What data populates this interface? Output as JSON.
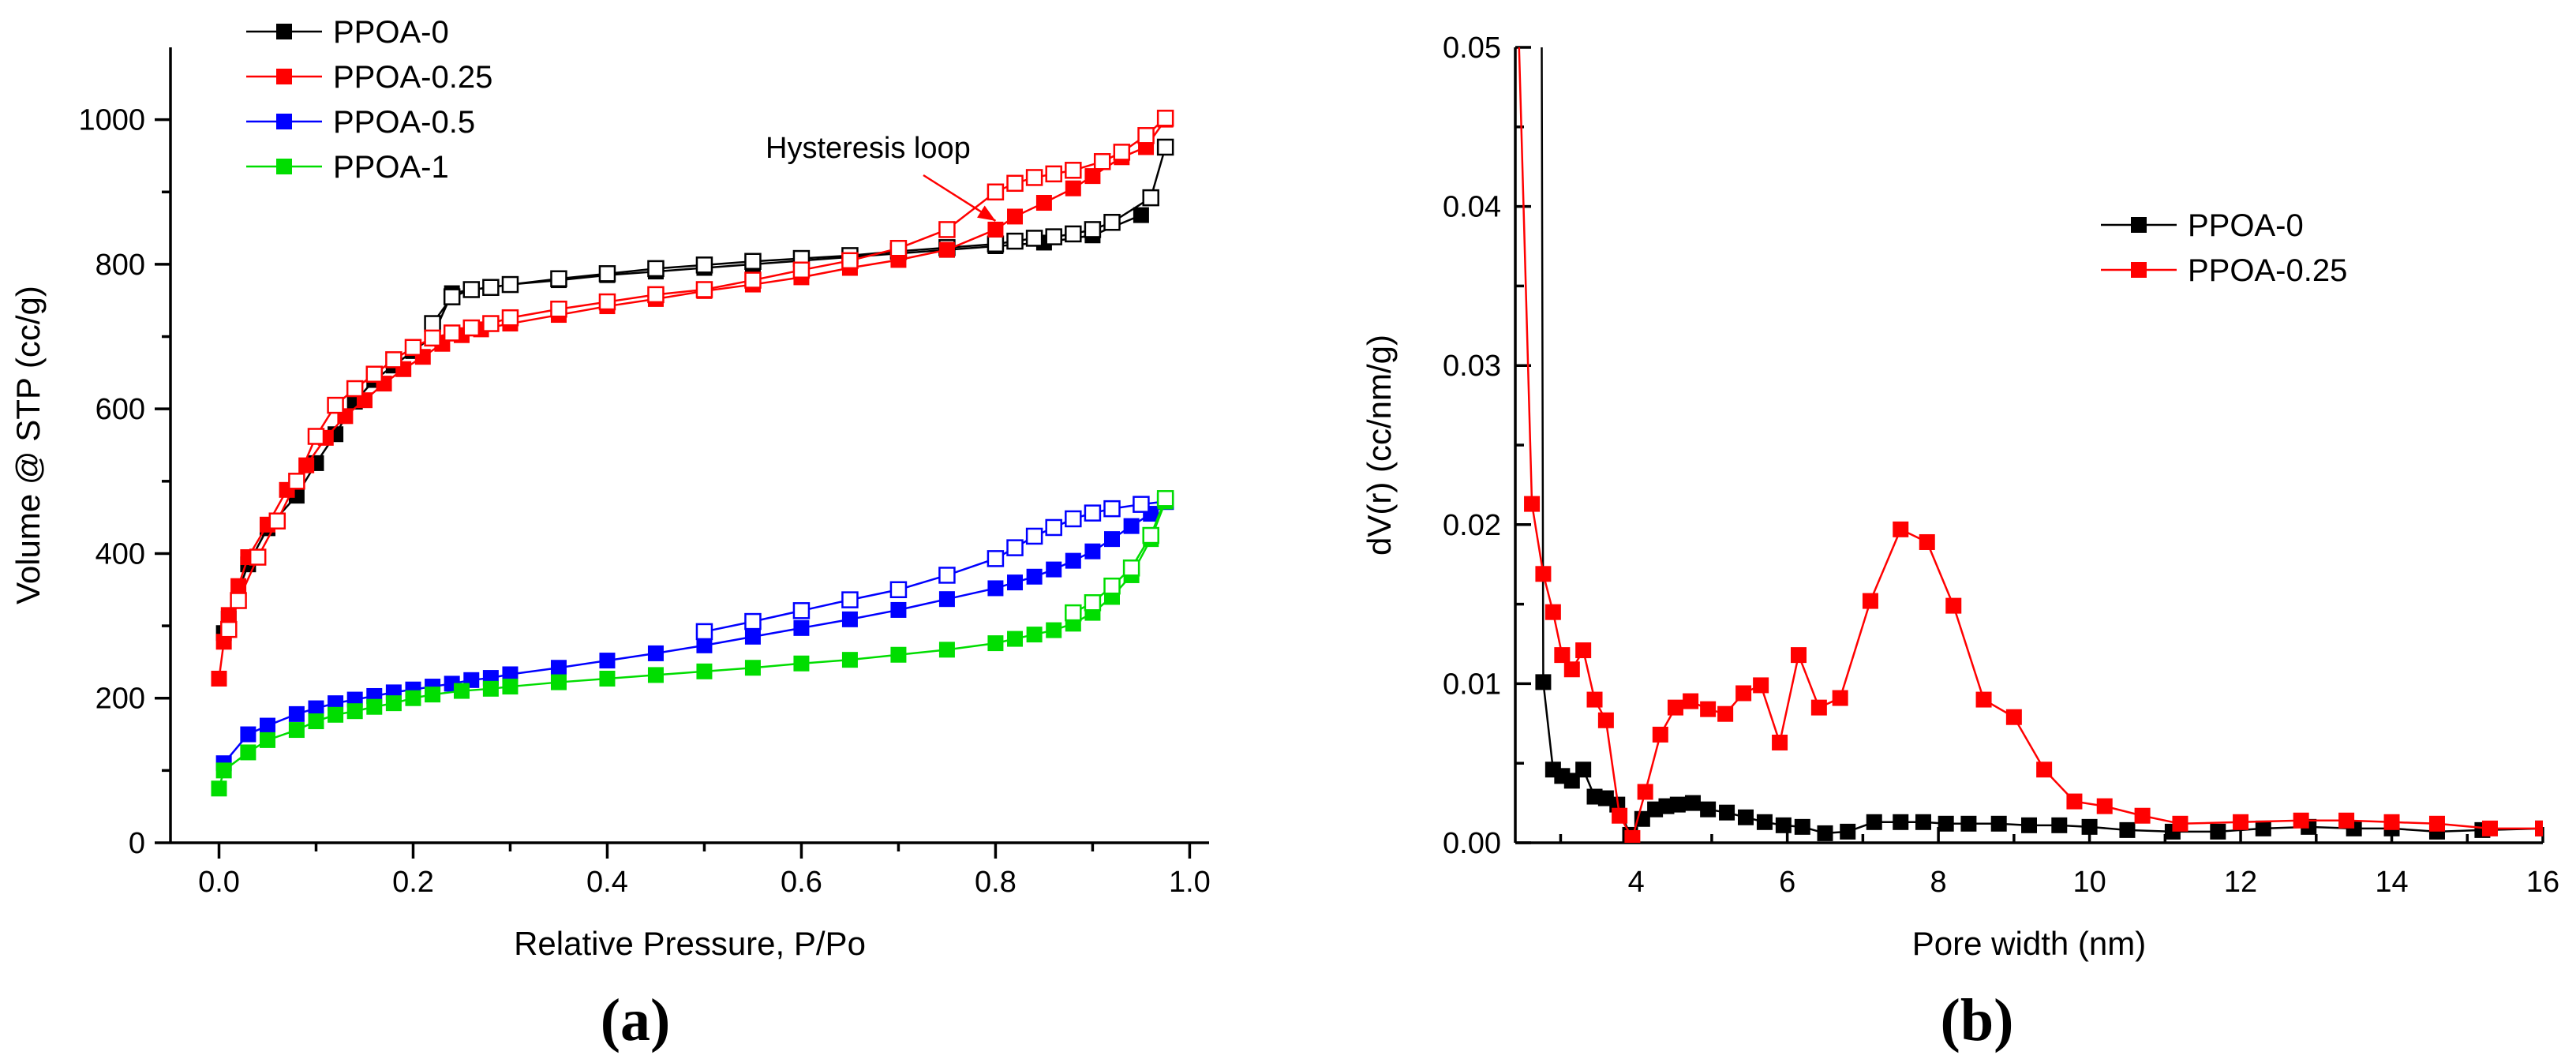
{
  "colors": {
    "PPOA-0": "#000000",
    "PPOA-0.25": "#ff0000",
    "PPOA-0.5": "#0000ff",
    "PPOA-1": "#00dd00"
  },
  "chart_data": [
    {
      "type": "line",
      "panel_label": "(a)",
      "title": "",
      "xlabel": "Relative Pressure, P/Po",
      "ylabel": "Volume @ STP (cc/g)",
      "xlim": [
        -0.05,
        1.02
      ],
      "ylim": [
        0,
        1100
      ],
      "x_ticks": [
        0.0,
        0.2,
        0.4,
        0.6,
        0.8,
        1.0
      ],
      "x_tick_labels": [
        "0.0",
        "0.2",
        "0.4",
        "0.6",
        "0.8",
        "1.0"
      ],
      "y_ticks": [
        0,
        200,
        400,
        600,
        800,
        1000
      ],
      "y_tick_labels": [
        "0",
        "200",
        "400",
        "600",
        "800",
        "1000"
      ],
      "legend_position": "top-left",
      "annotation": {
        "text": "Hysteresis loop",
        "points_to": [
          0.8,
          860
        ]
      },
      "series": [
        {
          "name": "PPOA-0",
          "color": "#000000",
          "branch": "adsorption",
          "marker": "filled-square",
          "x": [
            0.005,
            0.01,
            0.03,
            0.05,
            0.08,
            0.1,
            0.12,
            0.14,
            0.16,
            0.18,
            0.2,
            0.22,
            0.24,
            0.26,
            0.28,
            0.3,
            0.35,
            0.4,
            0.45,
            0.5,
            0.55,
            0.6,
            0.65,
            0.7,
            0.75,
            0.8,
            0.85,
            0.9,
            0.95
          ],
          "y": [
            290,
            310,
            385,
            435,
            480,
            525,
            565,
            610,
            640,
            660,
            680,
            700,
            760,
            765,
            768,
            772,
            778,
            785,
            790,
            795,
            800,
            805,
            810,
            815,
            820,
            825,
            830,
            840,
            868
          ]
        },
        {
          "name": "PPOA-0",
          "color": "#000000",
          "branch": "desorption",
          "marker": "open-square",
          "x": [
            0.975,
            0.96,
            0.92,
            0.9,
            0.88,
            0.86,
            0.84,
            0.82,
            0.8,
            0.75,
            0.7,
            0.65,
            0.6,
            0.55,
            0.5,
            0.45,
            0.4,
            0.35,
            0.3,
            0.28,
            0.26,
            0.24,
            0.22
          ],
          "y": [
            962,
            892,
            858,
            848,
            842,
            838,
            836,
            832,
            828,
            823,
            818,
            812,
            808,
            804,
            799,
            794,
            787,
            780,
            772,
            768,
            765,
            755,
            718
          ]
        },
        {
          "name": "PPOA-0.25",
          "color": "#ff0000",
          "branch": "adsorption",
          "marker": "filled-square",
          "x": [
            0.0,
            0.005,
            0.01,
            0.02,
            0.03,
            0.05,
            0.07,
            0.09,
            0.11,
            0.13,
            0.15,
            0.17,
            0.19,
            0.21,
            0.23,
            0.25,
            0.27,
            0.3,
            0.35,
            0.4,
            0.45,
            0.5,
            0.55,
            0.6,
            0.65,
            0.7,
            0.75,
            0.8,
            0.82,
            0.85,
            0.88,
            0.9,
            0.93,
            0.955,
            0.975
          ],
          "y": [
            227,
            278,
            315,
            355,
            395,
            440,
            488,
            522,
            560,
            590,
            612,
            635,
            655,
            672,
            690,
            702,
            710,
            718,
            730,
            742,
            752,
            763,
            772,
            782,
            795,
            806,
            820,
            848,
            866,
            885,
            905,
            922,
            948,
            962,
            1000
          ]
        },
        {
          "name": "PPOA-0.25",
          "color": "#ff0000",
          "branch": "desorption",
          "marker": "open-square",
          "x": [
            0.975,
            0.955,
            0.93,
            0.91,
            0.88,
            0.86,
            0.84,
            0.82,
            0.8,
            0.75,
            0.7,
            0.65,
            0.6,
            0.55,
            0.5,
            0.45,
            0.4,
            0.35,
            0.3,
            0.28,
            0.26,
            0.24,
            0.22,
            0.2,
            0.18,
            0.16,
            0.14,
            0.12,
            0.1,
            0.08,
            0.06,
            0.04,
            0.02,
            0.01
          ],
          "y": [
            1002,
            978,
            955,
            942,
            930,
            925,
            920,
            912,
            900,
            848,
            822,
            805,
            792,
            778,
            765,
            758,
            748,
            738,
            726,
            718,
            712,
            705,
            698,
            685,
            668,
            648,
            628,
            605,
            562,
            500,
            445,
            395,
            335,
            295
          ]
        },
        {
          "name": "PPOA-0.5",
          "color": "#0000ff",
          "branch": "adsorption",
          "marker": "filled-square",
          "x": [
            0.005,
            0.03,
            0.05,
            0.08,
            0.1,
            0.12,
            0.14,
            0.16,
            0.18,
            0.2,
            0.22,
            0.24,
            0.26,
            0.28,
            0.3,
            0.35,
            0.4,
            0.45,
            0.5,
            0.55,
            0.6,
            0.65,
            0.7,
            0.75,
            0.8,
            0.82,
            0.84,
            0.86,
            0.88,
            0.9,
            0.92,
            0.94,
            0.96,
            0.975
          ],
          "y": [
            110,
            150,
            162,
            178,
            186,
            193,
            198,
            203,
            208,
            212,
            216,
            220,
            225,
            228,
            233,
            242,
            252,
            262,
            273,
            285,
            297,
            309,
            322,
            337,
            352,
            360,
            368,
            378,
            390,
            403,
            420,
            438,
            455,
            472
          ]
        },
        {
          "name": "PPOA-0.5",
          "color": "#0000ff",
          "branch": "desorption",
          "marker": "open-square",
          "x": [
            0.975,
            0.95,
            0.92,
            0.9,
            0.88,
            0.86,
            0.84,
            0.82,
            0.8,
            0.75,
            0.7,
            0.65,
            0.6,
            0.55,
            0.5
          ],
          "y": [
            472,
            468,
            462,
            456,
            448,
            436,
            424,
            408,
            393,
            370,
            350,
            336,
            321,
            306,
            292
          ]
        },
        {
          "name": "PPOA-1",
          "color": "#00dd00",
          "branch": "adsorption",
          "marker": "filled-square",
          "x": [
            0.0,
            0.005,
            0.03,
            0.05,
            0.08,
            0.1,
            0.12,
            0.14,
            0.16,
            0.18,
            0.2,
            0.22,
            0.25,
            0.28,
            0.3,
            0.35,
            0.4,
            0.45,
            0.5,
            0.55,
            0.6,
            0.65,
            0.7,
            0.75,
            0.8,
            0.82,
            0.84,
            0.86,
            0.88,
            0.9,
            0.92,
            0.94,
            0.96,
            0.975
          ],
          "y": [
            75,
            100,
            125,
            142,
            156,
            168,
            177,
            182,
            188,
            193,
            200,
            205,
            210,
            213,
            216,
            222,
            227,
            232,
            237,
            242,
            248,
            253,
            260,
            267,
            276,
            282,
            288,
            294,
            303,
            318,
            340,
            370,
            420,
            472
          ]
        },
        {
          "name": "PPOA-1",
          "color": "#00dd00",
          "branch": "desorption",
          "marker": "open-square",
          "x": [
            0.975,
            0.96,
            0.94,
            0.92,
            0.9,
            0.88
          ],
          "y": [
            476,
            425,
            380,
            355,
            332,
            318
          ]
        }
      ]
    },
    {
      "type": "line",
      "panel_label": "(b)",
      "title": "",
      "xlabel": "Pore width (nm)",
      "ylabel": "dV(r) (cc/nm/g)",
      "xlim": [
        2.4,
        16
      ],
      "ylim": [
        0,
        0.05
      ],
      "x_ticks": [
        4,
        6,
        8,
        10,
        12,
        14,
        16
      ],
      "x_tick_labels": [
        "4",
        "6",
        "8",
        "10",
        "12",
        "14",
        "16"
      ],
      "y_ticks": [
        0.0,
        0.01,
        0.02,
        0.03,
        0.04,
        0.05
      ],
      "y_tick_labels": [
        "0.00",
        "0.01",
        "0.02",
        "0.03",
        "0.04",
        "0.05"
      ],
      "legend_position": "top-right",
      "series": [
        {
          "name": "PPOA-0",
          "color": "#000000",
          "marker": "filled-square",
          "line_from": [
            2.75,
            0.05
          ],
          "x": [
            2.77,
            2.9,
            3.02,
            3.15,
            3.3,
            3.45,
            3.6,
            3.75,
            3.92,
            4.08,
            4.25,
            4.4,
            4.55,
            4.75,
            4.95,
            5.2,
            5.45,
            5.7,
            5.95,
            6.2,
            6.5,
            6.8,
            7.15,
            7.5,
            7.8,
            8.1,
            8.4,
            8.8,
            9.2,
            9.6,
            10.0,
            10.5,
            11.1,
            11.7,
            12.3,
            12.9,
            13.5,
            14.0,
            14.6,
            15.2,
            16.0
          ],
          "y": [
            0.0101,
            0.0046,
            0.0042,
            0.0039,
            0.0046,
            0.0029,
            0.0028,
            0.0024,
            0.0005,
            0.0015,
            0.0021,
            0.0023,
            0.0024,
            0.0025,
            0.0021,
            0.0019,
            0.0016,
            0.0013,
            0.0011,
            0.001,
            0.0006,
            0.0007,
            0.0013,
            0.0013,
            0.0013,
            0.0012,
            0.0012,
            0.0012,
            0.0011,
            0.0011,
            0.001,
            0.0008,
            0.0007,
            0.0007,
            0.0009,
            0.001,
            0.0009,
            0.0009,
            0.0007,
            0.0008,
            0.0009
          ]
        },
        {
          "name": "PPOA-0.25",
          "color": "#ff0000",
          "marker": "filled-square",
          "line_from": [
            2.45,
            0.05
          ],
          "x": [
            2.62,
            2.77,
            2.9,
            3.02,
            3.15,
            3.3,
            3.45,
            3.6,
            3.78,
            3.95,
            4.12,
            4.32,
            4.52,
            4.72,
            4.95,
            5.18,
            5.42,
            5.65,
            5.9,
            6.15,
            6.42,
            6.7,
            7.1,
            7.5,
            7.85,
            8.2,
            8.6,
            9.0,
            9.4,
            9.8,
            10.2,
            10.7,
            11.2,
            12.0,
            12.8,
            13.4,
            14.0,
            14.6,
            15.3,
            16.0
          ],
          "y": [
            0.0213,
            0.0169,
            0.0145,
            0.0118,
            0.0109,
            0.0121,
            0.009,
            0.0077,
            0.0017,
            0.0003,
            0.0032,
            0.0068,
            0.0085,
            0.0089,
            0.0084,
            0.0081,
            0.0094,
            0.0099,
            0.0063,
            0.0118,
            0.0085,
            0.0091,
            0.0152,
            0.0197,
            0.0189,
            0.0149,
            0.009,
            0.0079,
            0.0046,
            0.0026,
            0.0023,
            0.0017,
            0.0012,
            0.0013,
            0.0014,
            0.0014,
            0.0013,
            0.0012,
            0.0009,
            0.0009
          ]
        }
      ]
    }
  ]
}
